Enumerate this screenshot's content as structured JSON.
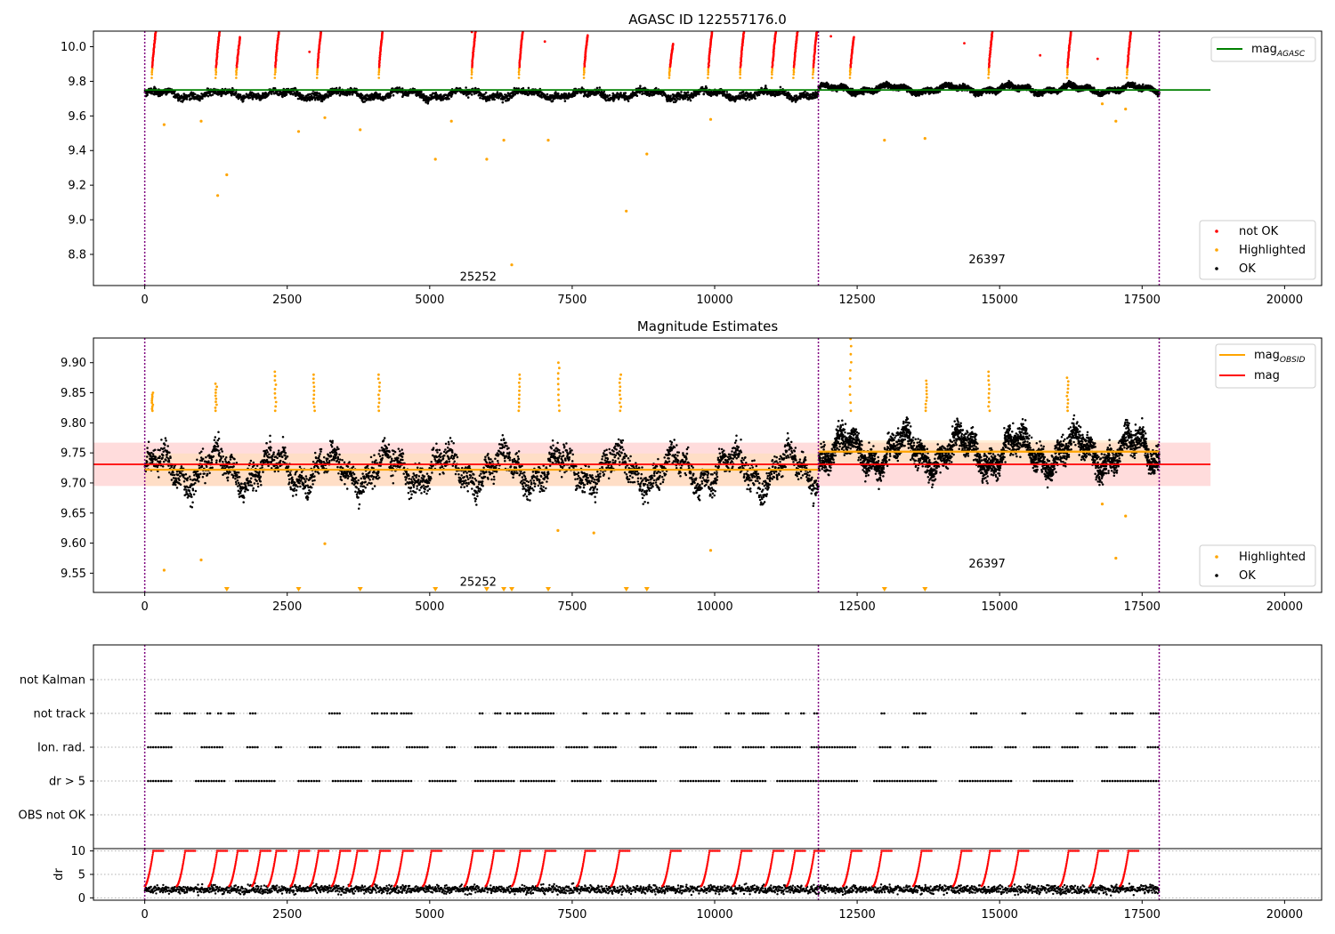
{
  "figure": {
    "panel1_title": "AGASC ID 122557176.0",
    "panel2_title": "Magnitude Estimates"
  },
  "colors": {
    "ok": "#000000",
    "not_ok": "#ff0000",
    "highlighted": "#ffa500",
    "mag_agasc": "#008000",
    "mag": "#ff0000",
    "mag_obsid": "#ffa500",
    "obs_boundary": "#800080",
    "band_fill": "#ffc0c0"
  },
  "chart_data": [
    {
      "type": "scatter",
      "title": "AGASC ID 122557176.0",
      "xlim": [
        -900,
        20650
      ],
      "ylim": [
        8.62,
        10.09
      ],
      "x_ticks": [
        0,
        2500,
        5000,
        7500,
        10000,
        12500,
        15000,
        17500,
        20000
      ],
      "y_ticks": [
        8.8,
        9.0,
        9.2,
        9.4,
        9.6,
        9.8,
        10.0
      ],
      "legend_position": "upper right and lower right",
      "legend_upper": [
        "mag_AGASC"
      ],
      "legend_lower": [
        "not OK",
        "Highlighted",
        "OK"
      ],
      "obs_boundaries": [
        0,
        11820,
        17800
      ],
      "obsids": [
        {
          "label": "25252",
          "x": 5850,
          "y": 8.67
        },
        {
          "label": "26397",
          "x": 14780,
          "y": 8.77
        }
      ],
      "mag_agasc": 9.75,
      "mag_agasc_range": [
        0,
        18700
      ],
      "observations": [
        {
          "obsid": "25252",
          "x_start": 0,
          "x_end": 11820,
          "ok_mean": 9.725,
          "ok_spread": 0.045
        },
        {
          "obsid": "26397",
          "x_start": 11820,
          "x_end": 17800,
          "ok_mean": 9.755,
          "ok_spread": 0.035
        }
      ],
      "highlighted_points": [
        {
          "x": 340,
          "y": 9.55
        },
        {
          "x": 990,
          "y": 9.57
        },
        {
          "x": 1280,
          "y": 9.14
        },
        {
          "x": 1440,
          "y": 9.26
        },
        {
          "x": 2700,
          "y": 9.51
        },
        {
          "x": 3160,
          "y": 9.59
        },
        {
          "x": 3780,
          "y": 9.52
        },
        {
          "x": 5100,
          "y": 9.35
        },
        {
          "x": 5380,
          "y": 9.57
        },
        {
          "x": 6000,
          "y": 9.35
        },
        {
          "x": 6300,
          "y": 9.46
        },
        {
          "x": 6440,
          "y": 8.74
        },
        {
          "x": 7080,
          "y": 9.46
        },
        {
          "x": 8450,
          "y": 9.05
        },
        {
          "x": 8810,
          "y": 9.38
        },
        {
          "x": 9930,
          "y": 9.58
        },
        {
          "x": 12980,
          "y": 9.46
        },
        {
          "x": 13690,
          "y": 9.47
        },
        {
          "x": 16800,
          "y": 9.67
        },
        {
          "x": 17040,
          "y": 9.57
        },
        {
          "x": 17210,
          "y": 9.64
        }
      ],
      "not_ok_spikes": [
        {
          "x": 120,
          "y_top": 10.09
        },
        {
          "x": 1240,
          "y_top": 10.09
        },
        {
          "x": 1600,
          "y_top": 10.06
        },
        {
          "x": 2280,
          "y_top": 10.09
        },
        {
          "x": 3020,
          "y_top": 10.09
        },
        {
          "x": 4100,
          "y_top": 10.09
        },
        {
          "x": 5730,
          "y_top": 10.09
        },
        {
          "x": 6560,
          "y_top": 10.09
        },
        {
          "x": 7700,
          "y_top": 10.07
        },
        {
          "x": 9200,
          "y_top": 10.02
        },
        {
          "x": 9880,
          "y_top": 10.09
        },
        {
          "x": 10440,
          "y_top": 10.09
        },
        {
          "x": 11000,
          "y_top": 10.09
        },
        {
          "x": 11380,
          "y_top": 10.09
        },
        {
          "x": 11720,
          "y_top": 10.09
        },
        {
          "x": 12370,
          "y_top": 10.06
        },
        {
          "x": 14800,
          "y_top": 10.09
        },
        {
          "x": 16180,
          "y_top": 10.09
        },
        {
          "x": 17230,
          "y_top": 10.09
        }
      ],
      "not_ok_isolated": [
        {
          "x": 5740,
          "y": 10.09
        },
        {
          "x": 7020,
          "y": 10.03
        },
        {
          "x": 12040,
          "y": 10.06
        },
        {
          "x": 14380,
          "y": 10.02
        },
        {
          "x": 15710,
          "y": 9.95
        },
        {
          "x": 16720,
          "y": 9.93
        },
        {
          "x": 2890,
          "y": 9.97
        }
      ]
    },
    {
      "type": "scatter",
      "title": "Magnitude Estimates",
      "xlim": [
        -900,
        20650
      ],
      "ylim": [
        9.518,
        9.941
      ],
      "x_ticks": [
        0,
        2500,
        5000,
        7500,
        10000,
        12500,
        15000,
        17500,
        20000
      ],
      "y_ticks": [
        9.55,
        9.6,
        9.65,
        9.7,
        9.75,
        9.8,
        9.85,
        9.9
      ],
      "legend_position": "upper right and lower right",
      "legend_upper": [
        "mag_OBSID",
        "mag"
      ],
      "legend_lower": [
        "Highlighted",
        "OK"
      ],
      "obs_boundaries": [
        0,
        11820,
        17800
      ],
      "obsids": [
        {
          "label": "25252",
          "x": 5850,
          "y": 9.535
        },
        {
          "label": "26397",
          "x": 14780,
          "y": 9.565
        }
      ],
      "mag": 9.731,
      "mag_band": [
        9.695,
        9.767
      ],
      "mag_range": [
        -900,
        18700
      ],
      "mag_obsid": [
        {
          "obsid": "25252",
          "x_start": 0,
          "x_end": 11820,
          "value": 9.722,
          "band": [
            9.695,
            9.749
          ]
        },
        {
          "obsid": "26397",
          "x_start": 11820,
          "x_end": 17800,
          "value": 9.752,
          "band": [
            9.733,
            9.771
          ]
        }
      ],
      "highlighted_points": [
        {
          "x": 340,
          "y": 9.555
        },
        {
          "x": 990,
          "y": 9.572
        },
        {
          "x": 3160,
          "y": 9.599
        },
        {
          "x": 7250,
          "y": 9.621
        },
        {
          "x": 7880,
          "y": 9.617
        },
        {
          "x": 9930,
          "y": 9.588
        },
        {
          "x": 16800,
          "y": 9.665
        },
        {
          "x": 17040,
          "y": 9.575
        },
        {
          "x": 17210,
          "y": 9.645
        }
      ],
      "highlighted_below_axis": [
        1440,
        2700,
        3780,
        5100,
        6000,
        6300,
        6440,
        7080,
        8450,
        8810,
        12980,
        13690
      ],
      "highlighted_spikes": [
        {
          "x": 120,
          "y_top": 9.85
        },
        {
          "x": 1240,
          "y_top": 9.865
        },
        {
          "x": 2280,
          "y_top": 9.885
        },
        {
          "x": 2960,
          "y_top": 9.88
        },
        {
          "x": 4100,
          "y_top": 9.88
        },
        {
          "x": 6560,
          "y_top": 9.88
        },
        {
          "x": 7250,
          "y_top": 9.9
        },
        {
          "x": 8330,
          "y_top": 9.88
        },
        {
          "x": 12370,
          "y_top": 9.941
        },
        {
          "x": 13700,
          "y_top": 9.87
        },
        {
          "x": 14800,
          "y_top": 9.885
        },
        {
          "x": 16180,
          "y_top": 9.875
        }
      ]
    },
    {
      "type": "scatter",
      "title": "",
      "xlim": [
        -900,
        20650
      ],
      "categories": [
        "not Kalman",
        "not track",
        "Ion. rad.",
        "dr > 5",
        "OBS not OK"
      ],
      "flag_segments": {
        "not track": [
          [
            200,
            320
          ],
          [
            350,
            480
          ],
          [
            700,
            900
          ],
          [
            1100,
            1180
          ],
          [
            1290,
            1350
          ],
          [
            1470,
            1600
          ],
          [
            1850,
            1950
          ],
          [
            3240,
            3450
          ],
          [
            3990,
            4080
          ],
          [
            4160,
            4260
          ],
          [
            4330,
            4430
          ],
          [
            4500,
            4690
          ],
          [
            5880,
            5950
          ],
          [
            6150,
            6250
          ],
          [
            6360,
            6420
          ],
          [
            6500,
            6590
          ],
          [
            6680,
            6730
          ],
          [
            6810,
            6860
          ],
          [
            6900,
            7180
          ],
          [
            7700,
            7760
          ],
          [
            8040,
            8130
          ],
          [
            8240,
            8300
          ],
          [
            8450,
            8510
          ],
          [
            8720,
            8800
          ],
          [
            9170,
            9250
          ],
          [
            9330,
            9600
          ],
          [
            10200,
            10280
          ],
          [
            10420,
            10550
          ],
          [
            10670,
            10980
          ],
          [
            11250,
            11300
          ],
          [
            11520,
            11570
          ],
          [
            11750,
            11820
          ],
          [
            12930,
            13000
          ],
          [
            13500,
            13600
          ],
          [
            13650,
            13720
          ],
          [
            14500,
            14600
          ],
          [
            15400,
            15460
          ],
          [
            16350,
            16440
          ],
          [
            16950,
            17050
          ],
          [
            17150,
            17350
          ],
          [
            17650,
            17800
          ]
        ],
        "Ion. rad.": [
          [
            60,
            500
          ],
          [
            1000,
            1400
          ],
          [
            1800,
            2000
          ],
          [
            2300,
            2400
          ],
          [
            2900,
            3100
          ],
          [
            3400,
            3800
          ],
          [
            4000,
            4300
          ],
          [
            4600,
            5000
          ],
          [
            5300,
            5450
          ],
          [
            5800,
            6200
          ],
          [
            6400,
            7200
          ],
          [
            7400,
            7800
          ],
          [
            7900,
            8300
          ],
          [
            8700,
            9000
          ],
          [
            9400,
            9700
          ],
          [
            10000,
            10300
          ],
          [
            10500,
            10900
          ],
          [
            11000,
            11500
          ],
          [
            11700,
            12500
          ],
          [
            12900,
            13100
          ],
          [
            13300,
            13400
          ],
          [
            13600,
            13800
          ],
          [
            14500,
            14900
          ],
          [
            15100,
            15300
          ],
          [
            15600,
            15900
          ],
          [
            16100,
            16400
          ],
          [
            16700,
            16900
          ],
          [
            17100,
            17400
          ],
          [
            17600,
            17800
          ]
        ],
        "dr > 5": [
          [
            60,
            500
          ],
          [
            900,
            1400
          ],
          [
            1600,
            2300
          ],
          [
            2700,
            3100
          ],
          [
            3300,
            3800
          ],
          [
            4000,
            4700
          ],
          [
            5000,
            5450
          ],
          [
            5800,
            6500
          ],
          [
            6600,
            7200
          ],
          [
            7500,
            8000
          ],
          [
            8200,
            9000
          ],
          [
            9400,
            10100
          ],
          [
            10300,
            10900
          ],
          [
            11100,
            11820
          ],
          [
            11820,
            12500
          ],
          [
            12800,
            13900
          ],
          [
            14300,
            15200
          ],
          [
            15600,
            16300
          ],
          [
            16800,
            17800
          ]
        ],
        "not Kalman": [],
        "OBS not OK": []
      }
    },
    {
      "type": "scatter",
      "title": "",
      "ylabel": "dr",
      "xlim": [
        -900,
        20650
      ],
      "ylim": [
        -0.5,
        10.5
      ],
      "x_ticks": [
        0,
        2500,
        5000,
        7500,
        10000,
        12500,
        15000,
        17500,
        20000
      ],
      "y_ticks": [
        0,
        5,
        10
      ],
      "dr_cap": 10,
      "ok_level": 1.8,
      "not_ok_spike_x": [
        120,
        680,
        1240,
        1600,
        2000,
        2280,
        2680,
        3020,
        3400,
        3700,
        4100,
        4500,
        5000,
        5730,
        6100,
        6560,
        7000,
        7700,
        8300,
        9200,
        9880,
        10440,
        11000,
        11380,
        11720,
        12370,
        12900,
        13600,
        14300,
        14800,
        15300,
        16180,
        16700,
        17230
      ]
    }
  ]
}
